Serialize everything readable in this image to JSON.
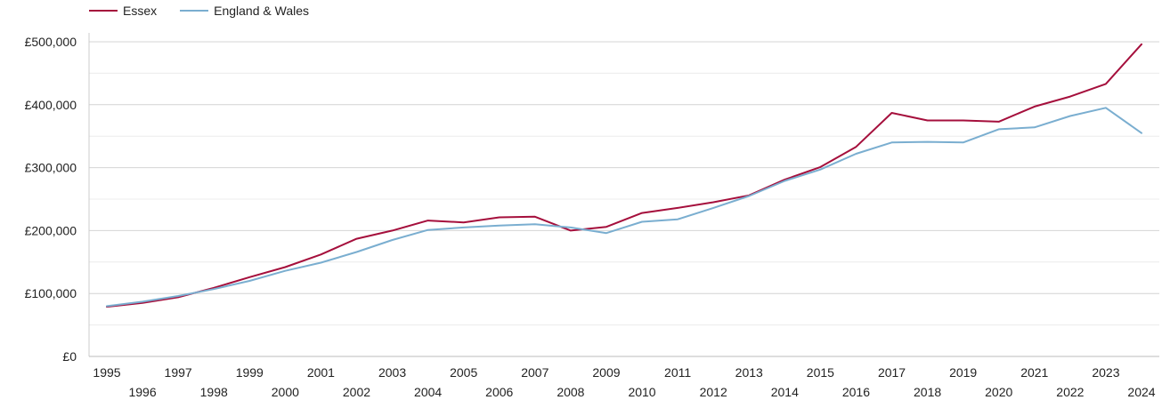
{
  "chart_data": {
    "type": "line",
    "title": "",
    "xlabel": "",
    "ylabel": "",
    "x": [
      1995,
      1996,
      1997,
      1998,
      1999,
      2000,
      2001,
      2002,
      2003,
      2004,
      2005,
      2006,
      2007,
      2008,
      2009,
      2010,
      2011,
      2012,
      2013,
      2014,
      2015,
      2016,
      2017,
      2018,
      2019,
      2020,
      2021,
      2022,
      2023,
      2024
    ],
    "ylim": [
      0,
      500000
    ],
    "yticks": [
      0,
      100000,
      200000,
      300000,
      400000,
      500000
    ],
    "ytick_labels": [
      "£0",
      "£100,000",
      "£200,000",
      "£300,000",
      "£400,000",
      "£500,000"
    ],
    "grid": true,
    "legend_position": "top-left",
    "series": [
      {
        "name": "Essex",
        "color": "#a50f3c",
        "values": [
          79000,
          85000,
          94000,
          109000,
          126000,
          142000,
          162000,
          187000,
          200000,
          216000,
          213000,
          221000,
          222000,
          200000,
          206000,
          228000,
          236000,
          245000,
          256000,
          281000,
          301000,
          333000,
          387000,
          375000,
          375000,
          373000,
          397000,
          413000,
          433000,
          496000
        ]
      },
      {
        "name": "England & Wales",
        "color": "#7aaed0",
        "values": [
          80000,
          87000,
          96000,
          107000,
          120000,
          136000,
          149000,
          166000,
          185000,
          201000,
          205000,
          208000,
          210000,
          205000,
          196000,
          214000,
          218000,
          236000,
          255000,
          279000,
          297000,
          322000,
          340000,
          341000,
          340000,
          361000,
          364000,
          382000,
          395000,
          355000
        ]
      }
    ]
  }
}
